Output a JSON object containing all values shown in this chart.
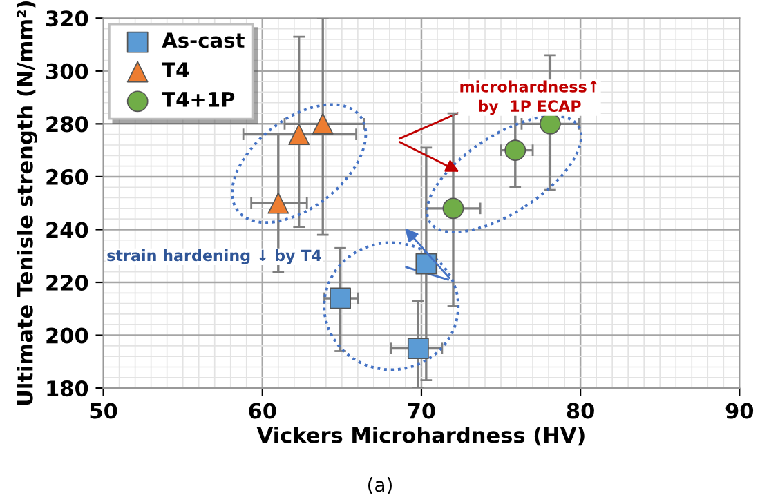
{
  "chart_data": {
    "type": "scatter",
    "xlabel": "Vickers Microhardness (HV)",
    "ylabel": "Ultimate Tenisle strength (N/mm²)",
    "xlim": [
      50,
      90
    ],
    "xticks": [
      50,
      60,
      70,
      80,
      90
    ],
    "ylim": [
      180,
      320
    ],
    "yticks": [
      180,
      200,
      220,
      240,
      260,
      280,
      300,
      320
    ],
    "grid": true,
    "legend": "top left",
    "series": [
      {
        "name": "As-cast",
        "color": "#5b9bd5",
        "marker": "square",
        "x": [
          64.9,
          70.3,
          69.8
        ],
        "values": [
          214,
          227,
          195
        ],
        "errors": [
          [
            194,
            233
          ],
          [
            183,
            271
          ],
          [
            180,
            213
          ]
        ],
        "xerrors": [
          [
            63.9,
            66.0
          ],
          null,
          [
            68.1,
            71.3
          ]
        ]
      },
      {
        "name": "T4",
        "color": "#ed7d31",
        "marker": "triangle",
        "x": [
          61.0,
          62.3,
          63.8
        ],
        "values": [
          250,
          276,
          280
        ],
        "errors": [
          [
            224,
            276
          ],
          [
            241,
            313
          ],
          [
            238,
            320
          ]
        ],
        "xerrors": [
          [
            59.3,
            62.8
          ],
          [
            58.8,
            65.9
          ],
          [
            61.4,
            66.4
          ]
        ]
      },
      {
        "name": "T4+1P",
        "color": "#70ad47",
        "marker": "circle",
        "x": [
          72.0,
          75.9,
          78.1
        ],
        "values": [
          248,
          270,
          280
        ],
        "errors": [
          [
            211,
            284
          ],
          [
            256,
            285
          ],
          [
            255,
            306
          ]
        ],
        "xerrors": [
          [
            70.3,
            73.7
          ],
          [
            75.0,
            77.0
          ],
          [
            76.3,
            79.9
          ]
        ]
      }
    ],
    "annotations": [
      "microhardness↑\nby  1P ECAP",
      "strain hardening ↓ by T4",
      "(a)"
    ]
  }
}
